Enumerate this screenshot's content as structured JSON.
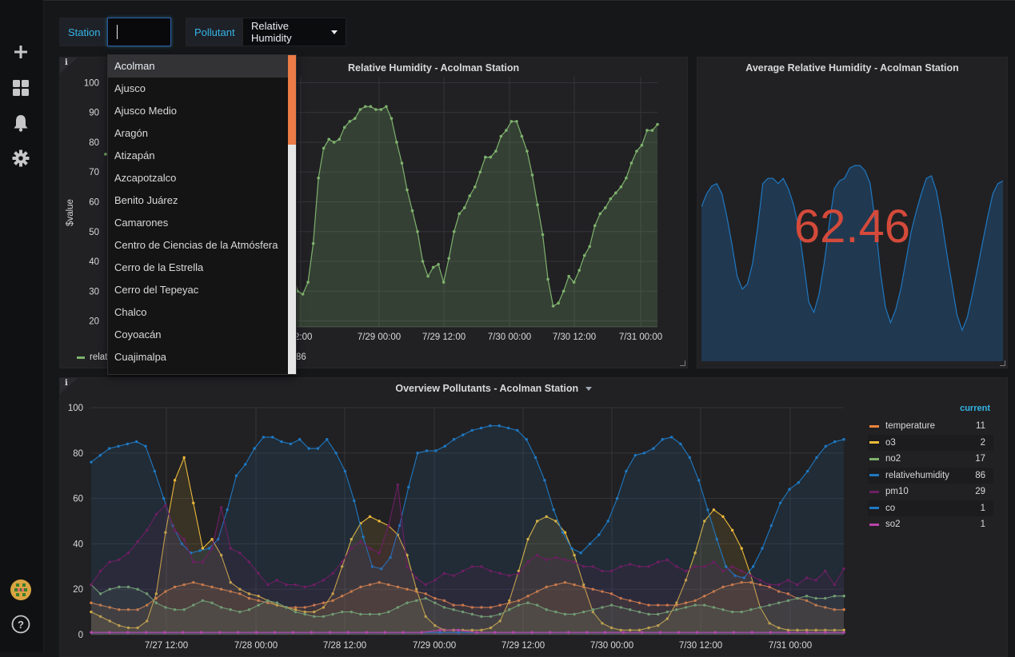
{
  "variables": {
    "station_label": "Station",
    "station_value": "",
    "pollutant_label": "Pollutant",
    "pollutant_value": "Relative Humidity"
  },
  "station_options": [
    "Acolman",
    "Ajusco",
    "Ajusco Medio",
    "Aragón",
    "Atizapán",
    "Azcapotzalco",
    "Benito Juárez",
    "Camarones",
    "Centro de Ciencias de la Atmósfera",
    "Cerro de la Estrella",
    "Cerro del Tepeyac",
    "Chalco",
    "Coyoacán",
    "Cuajimalpa"
  ],
  "panels": {
    "humidity": {
      "title": "Relative Humidity - Acolman Station",
      "visible_title": "Relative Humidity - Acolman Station",
      "ylabel": "$value",
      "legend_partial": "relat",
      "legend_value": "86"
    },
    "average": {
      "title": "Average Relative Humidity - Acolman Station",
      "value": "62.46"
    },
    "overview": {
      "title": "Overview Pollutants - Acolman Station",
      "legend_header": "current"
    }
  },
  "chart_data": [
    {
      "type": "line",
      "title": "Relative Humidity - Acolman Station",
      "ylabel": "$value",
      "ylim": [
        18,
        102
      ],
      "yticks": [
        20,
        30,
        40,
        50,
        60,
        70,
        80,
        90,
        100
      ],
      "xtick_labels": [
        "12:00",
        "7/29 00:00",
        "7/29 12:00",
        "7/30 00:00",
        "7/30 12:00",
        "7/31 00:00"
      ],
      "series": [
        {
          "name": "relat…",
          "color": "#7eb26d",
          "values": [
            46,
            38,
            30,
            29,
            33,
            46,
            68,
            78,
            81,
            80,
            81,
            85,
            87,
            88,
            91,
            92,
            92,
            91,
            91,
            92,
            88,
            80,
            73,
            64,
            57,
            50,
            40,
            35,
            38,
            39,
            33,
            41,
            50,
            56,
            58,
            62,
            65,
            70,
            75,
            75,
            77,
            82,
            84,
            87,
            87,
            82,
            77,
            69,
            59,
            49,
            34,
            25,
            26,
            30,
            35,
            33,
            37,
            42,
            45,
            52,
            56,
            58,
            61,
            63,
            65,
            68,
            73,
            77,
            79,
            84,
            84,
            86
          ]
        }
      ]
    },
    {
      "type": "area",
      "title": "Average Relative Humidity - Acolman Station",
      "value": 62.46,
      "series": [
        {
          "color": "#1f78c1",
          "values": [
            70,
            75,
            78,
            79,
            75,
            66,
            55,
            43,
            38,
            40,
            48,
            62,
            79,
            81,
            81,
            79,
            81,
            77,
            71,
            62,
            48,
            33,
            29,
            36,
            48,
            63,
            77,
            80,
            81,
            85,
            86,
            86,
            84,
            79,
            64,
            45,
            31,
            25,
            30,
            38,
            49,
            60,
            68,
            75,
            81,
            82,
            76,
            65,
            52,
            40,
            28,
            22,
            27,
            36,
            46,
            56,
            66,
            75,
            79,
            80
          ]
        }
      ]
    },
    {
      "type": "line",
      "title": "Overview Pollutants - Acolman Station",
      "ylim": [
        0,
        100
      ],
      "yticks": [
        0,
        20,
        40,
        60,
        80,
        100
      ],
      "xtick_labels": [
        "7/27 12:00",
        "7/28 00:00",
        "7/28 12:00",
        "7/29 00:00",
        "7/29 12:00",
        "7/30 00:00",
        "7/30 12:00",
        "7/31 00:00"
      ],
      "legend": {
        "header": "current",
        "position": "right"
      },
      "series": [
        {
          "name": "temperature",
          "color": "#ef843c",
          "current": "11",
          "values": [
            14,
            13,
            12,
            11,
            11,
            11,
            13,
            16,
            19,
            21,
            22,
            23,
            22,
            21,
            20,
            19,
            18,
            16,
            15,
            14,
            13,
            12,
            12,
            12,
            13,
            14,
            15,
            17,
            19,
            21,
            22,
            23,
            22,
            21,
            20,
            19,
            18,
            16,
            15,
            13,
            13,
            12,
            12,
            12,
            13,
            14,
            15,
            17,
            19,
            21,
            22,
            23,
            22,
            21,
            20,
            19,
            18,
            16,
            15,
            14,
            13,
            13,
            13,
            13,
            14,
            15,
            17,
            19,
            21,
            22,
            23,
            23,
            22,
            21,
            19,
            18,
            16,
            15,
            13,
            12,
            11,
            11
          ]
        },
        {
          "name": "o3",
          "color": "#eab839",
          "current": "2",
          "values": [
            10,
            8,
            6,
            4,
            3,
            3,
            6,
            18,
            45,
            68,
            78,
            58,
            38,
            42,
            35,
            23,
            20,
            18,
            17,
            15,
            13,
            12,
            11,
            10,
            10,
            12,
            18,
            30,
            42,
            49,
            52,
            50,
            48,
            44,
            35,
            20,
            8,
            4,
            2,
            2,
            2,
            2,
            2,
            3,
            6,
            15,
            28,
            42,
            50,
            52,
            50,
            45,
            35,
            22,
            10,
            5,
            3,
            2,
            2,
            2,
            3,
            4,
            7,
            14,
            24,
            36,
            50,
            55,
            52,
            46,
            38,
            26,
            12,
            5,
            3,
            2,
            2,
            2,
            2,
            2,
            2,
            2
          ]
        },
        {
          "name": "no2",
          "color": "#7eb26d",
          "current": "17",
          "values": [
            22,
            18,
            20,
            21,
            21,
            20,
            18,
            14,
            12,
            11,
            11,
            13,
            15,
            14,
            12,
            11,
            10,
            11,
            13,
            15,
            14,
            12,
            10,
            9,
            8,
            8,
            9,
            10,
            10,
            9,
            9,
            9,
            10,
            12,
            14,
            15,
            16,
            14,
            12,
            11,
            10,
            9,
            8,
            8,
            9,
            11,
            13,
            14,
            13,
            11,
            10,
            9,
            9,
            10,
            11,
            12,
            13,
            12,
            11,
            10,
            9,
            9,
            10,
            11,
            12,
            13,
            13,
            12,
            11,
            10,
            10,
            11,
            12,
            13,
            14,
            15,
            16,
            17,
            16,
            16,
            17,
            17
          ]
        },
        {
          "name": "relativehumidity",
          "color": "#1f78c1",
          "current": "86",
          "values": [
            76,
            79,
            82,
            83,
            84,
            85,
            83,
            72,
            60,
            48,
            40,
            36,
            37,
            38,
            42,
            55,
            70,
            75,
            82,
            87,
            87,
            85,
            84,
            86,
            82,
            82,
            86,
            80,
            72,
            59,
            43,
            30,
            29,
            34,
            48,
            65,
            80,
            81,
            81,
            83,
            86,
            88,
            90,
            91,
            92,
            92,
            91,
            90,
            86,
            78,
            68,
            55,
            45,
            38,
            36,
            40,
            44,
            50,
            60,
            72,
            79,
            80,
            82,
            86,
            87,
            84,
            78,
            68,
            55,
            42,
            30,
            26,
            25,
            30,
            38,
            48,
            58,
            64,
            67,
            72,
            78,
            83,
            85,
            86
          ]
        },
        {
          "name": "pm10",
          "color": "#6d1f62",
          "current": "29",
          "values": [
            22,
            28,
            32,
            33,
            36,
            41,
            46,
            53,
            57,
            46,
            42,
            32,
            32,
            38,
            56,
            38,
            36,
            32,
            27,
            22,
            24,
            22,
            22,
            21,
            22,
            24,
            27,
            32,
            38,
            41,
            38,
            36,
            48,
            66,
            30,
            25,
            22,
            24,
            27,
            26,
            28,
            30,
            30,
            28,
            27,
            26,
            27,
            32,
            35,
            33,
            34,
            33,
            32,
            30,
            30,
            28,
            28,
            30,
            31,
            30,
            30,
            32,
            33,
            30,
            28,
            30,
            30,
            32,
            28,
            30,
            28,
            26,
            24,
            22,
            22,
            24,
            22,
            25,
            24,
            28,
            22,
            29
          ]
        },
        {
          "name": "co",
          "color": "#1f78c1",
          "current": "1",
          "values": [
            1,
            1,
            1,
            1,
            1,
            1,
            1,
            1,
            1,
            1,
            1,
            1,
            1,
            1,
            1,
            1,
            1,
            1,
            1,
            1,
            1,
            1,
            1,
            1,
            1,
            1,
            1,
            1,
            1,
            1,
            1,
            1,
            1,
            1,
            1,
            1,
            1,
            1,
            1,
            1,
            1,
            1
          ]
        },
        {
          "name": "so2",
          "color": "#ba43a9",
          "current": "1",
          "values": [
            1,
            1,
            1,
            1,
            1,
            1,
            1,
            1,
            1,
            1,
            1,
            1,
            1,
            1,
            1,
            1,
            1,
            1,
            1,
            2,
            2,
            1,
            1,
            1,
            1,
            1,
            1,
            1,
            1,
            1,
            1,
            1,
            1,
            1,
            1,
            1,
            1,
            1,
            1,
            1,
            1,
            1
          ]
        }
      ]
    }
  ]
}
